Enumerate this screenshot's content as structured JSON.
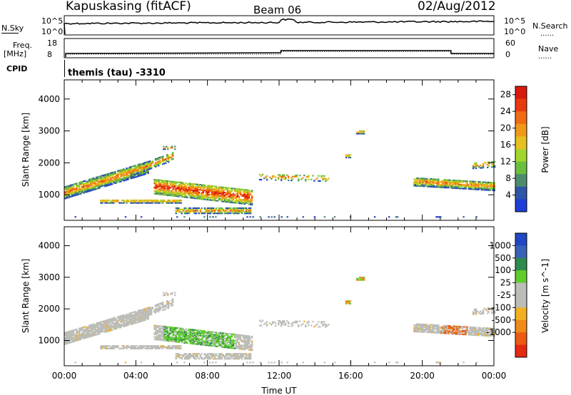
{
  "header": {
    "radar": "Kapuskasing (fitACF)",
    "beam": "Beam 06",
    "date": "02/Aug/2012",
    "program": "themis (tau)  -3310"
  },
  "summary_panels": {
    "nsky_label": "N.Sky",
    "nsearch_label": "N.Search",
    "nsky_ticks": [
      "10^5",
      "10^0"
    ],
    "freq_label_1": "Freq.",
    "freq_label_2": "[MHz]",
    "freq_ticks": [
      "18",
      "8"
    ],
    "nave_label": "Nave",
    "nave_ticks": [
      "60",
      "0"
    ],
    "cpid_label": "CPID",
    "legend_dots": "......"
  },
  "colors": {
    "power": [
      "#1f3ed6",
      "#2e55a8",
      "#4c8c6c",
      "#6bbf3e",
      "#a3d62a",
      "#e6c020",
      "#f0981a",
      "#f06c14",
      "#e83a10",
      "#d81a0c"
    ],
    "velocity": [
      "#2147c4",
      "#3a62b8",
      "#2f8a4e",
      "#5fcd2e",
      "#bdbdb8",
      "#bdbdb8",
      "#f2b020",
      "#f08a1a",
      "#ec5a14",
      "#e42a10"
    ]
  },
  "chart_data": [
    {
      "type": "heatmap",
      "title": "Power",
      "xlabel": "Time UT",
      "ylabel": "Slant Range [km]",
      "xlim": [
        0,
        24
      ],
      "ylim": [
        200,
        4600
      ],
      "x_tick_labels": [
        "00:00",
        "04:00",
        "08:00",
        "12:00",
        "16:00",
        "20:00",
        "00:00"
      ],
      "y_ticks": [
        1000,
        2000,
        3000,
        4000
      ],
      "colorbar_label": "Power [dB]",
      "colorbar_ticks": [
        "4",
        "8",
        "12",
        "16",
        "20",
        "24",
        "28"
      ],
      "colorbar_range": [
        0,
        30
      ]
    },
    {
      "type": "heatmap",
      "title": "Velocity",
      "xlabel": "Time UT",
      "ylabel": "Slant Range [km]",
      "xlim": [
        0,
        24
      ],
      "ylim": [
        200,
        4600
      ],
      "x_tick_labels": [
        "00:00",
        "04:00",
        "08:00",
        "12:00",
        "16:00",
        "20:00",
        "00:00"
      ],
      "y_ticks": [
        1000,
        2000,
        3000,
        4000
      ],
      "colorbar_label": "Velocity [m s^-1]",
      "colorbar_ticks": [
        "1000",
        "500",
        "100",
        "25",
        "-25",
        "-100",
        "-500",
        "-1000"
      ]
    }
  ]
}
